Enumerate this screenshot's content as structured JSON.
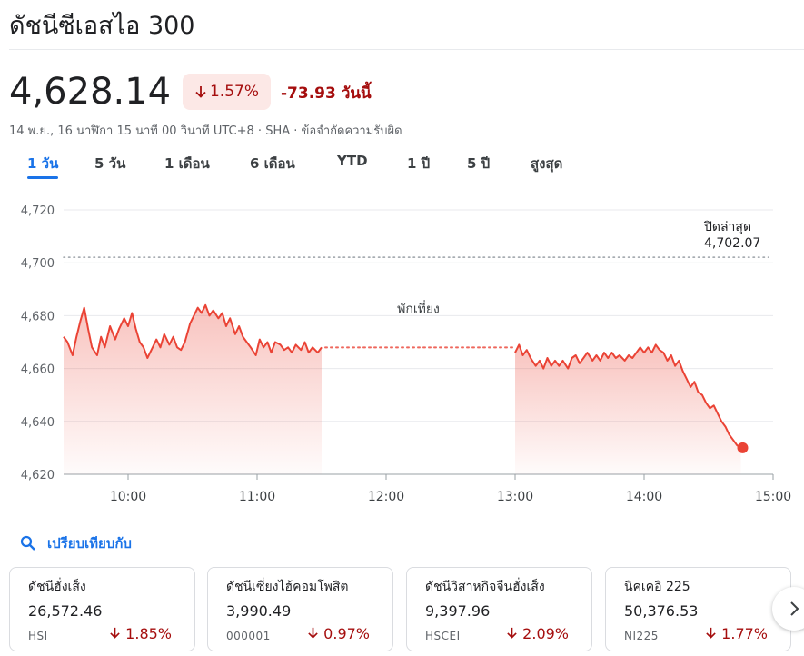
{
  "page": {
    "title": "ดัชนีซีเอสไอ 300",
    "price": "4,628.14",
    "change_pct": "1.57%",
    "change_abs": "-73.93",
    "change_period": "วันนี้",
    "meta": "14 พ.ย., 16 นาฬิกา 15 นาที 00 วินาที UTC+8 · SHA · ข้อจำกัดความรับผิด",
    "colors": {
      "down": "#a50e0e",
      "line": "#ea4335",
      "accent": "#1a73e8"
    }
  },
  "tabs": [
    {
      "label": "1 วัน",
      "active": true
    },
    {
      "label": "5 วัน",
      "active": false
    },
    {
      "label": "1 เดือน",
      "active": false
    },
    {
      "label": "6 เดือน",
      "active": false
    },
    {
      "label": "YTD",
      "active": false
    },
    {
      "label": "1 ปี",
      "active": false
    },
    {
      "label": "5 ปี",
      "active": false
    },
    {
      "label": "สูงสุด",
      "active": false
    }
  ],
  "chart_data": {
    "type": "line",
    "yticks": [
      "4,720",
      "4,700",
      "4,680",
      "4,660",
      "4,640",
      "4,620"
    ],
    "ytick_values": [
      4720,
      4700,
      4680,
      4660,
      4640,
      4620
    ],
    "ylim": [
      4620,
      4720
    ],
    "xticks": [
      "10:00",
      "11:00",
      "12:00",
      "13:00",
      "14:00",
      "15:00"
    ],
    "xtick_values": [
      10,
      11,
      12,
      13,
      14,
      15
    ],
    "xlim": [
      9.5,
      15.0
    ],
    "previous_close_label": "ปิดล่าสุด",
    "previous_close_value": "4,702.07",
    "previous_close": 4702.07,
    "break_label": "พักเที่ยง",
    "grid": true,
    "series": [
      {
        "segment": "morning",
        "points": [
          [
            9.5,
            4672
          ],
          [
            9.53,
            4670
          ],
          [
            9.57,
            4665
          ],
          [
            9.6,
            4672
          ],
          [
            9.63,
            4678
          ],
          [
            9.66,
            4683
          ],
          [
            9.69,
            4675
          ],
          [
            9.72,
            4668
          ],
          [
            9.76,
            4665
          ],
          [
            9.79,
            4672
          ],
          [
            9.82,
            4668
          ],
          [
            9.86,
            4676
          ],
          [
            9.9,
            4671
          ],
          [
            9.93,
            4675
          ],
          [
            9.97,
            4679
          ],
          [
            10.0,
            4676
          ],
          [
            10.03,
            4681
          ],
          [
            10.06,
            4675
          ],
          [
            10.09,
            4670
          ],
          [
            10.12,
            4668
          ],
          [
            10.15,
            4664
          ],
          [
            10.19,
            4668
          ],
          [
            10.22,
            4671
          ],
          [
            10.25,
            4668
          ],
          [
            10.28,
            4673
          ],
          [
            10.32,
            4669
          ],
          [
            10.35,
            4672
          ],
          [
            10.38,
            4668
          ],
          [
            10.41,
            4667
          ],
          [
            10.44,
            4670
          ],
          [
            10.48,
            4677
          ],
          [
            10.51,
            4680
          ],
          [
            10.54,
            4683
          ],
          [
            10.57,
            4681
          ],
          [
            10.6,
            4684
          ],
          [
            10.63,
            4680
          ],
          [
            10.66,
            4682
          ],
          [
            10.7,
            4679
          ],
          [
            10.73,
            4681
          ],
          [
            10.76,
            4676
          ],
          [
            10.79,
            4679
          ],
          [
            10.83,
            4673
          ],
          [
            10.86,
            4676
          ],
          [
            10.89,
            4672
          ],
          [
            10.92,
            4670
          ],
          [
            10.95,
            4668
          ],
          [
            10.99,
            4665
          ],
          [
            11.02,
            4671
          ],
          [
            11.05,
            4668
          ],
          [
            11.08,
            4670
          ],
          [
            11.11,
            4666
          ],
          [
            11.14,
            4670
          ],
          [
            11.18,
            4669
          ],
          [
            11.21,
            4667
          ],
          [
            11.24,
            4668
          ],
          [
            11.27,
            4666
          ],
          [
            11.3,
            4669
          ],
          [
            11.34,
            4667
          ],
          [
            11.37,
            4670
          ],
          [
            11.4,
            4666
          ],
          [
            11.43,
            4668
          ],
          [
            11.47,
            4666
          ],
          [
            11.5,
            4668
          ]
        ]
      },
      {
        "segment": "afternoon",
        "points": [
          [
            13.0,
            4666
          ],
          [
            13.03,
            4669
          ],
          [
            13.06,
            4665
          ],
          [
            13.09,
            4667
          ],
          [
            13.12,
            4664
          ],
          [
            13.16,
            4661
          ],
          [
            13.19,
            4663
          ],
          [
            13.22,
            4660
          ],
          [
            13.25,
            4664
          ],
          [
            13.28,
            4661
          ],
          [
            13.31,
            4663
          ],
          [
            13.34,
            4661
          ],
          [
            13.37,
            4663
          ],
          [
            13.41,
            4660
          ],
          [
            13.44,
            4664
          ],
          [
            13.47,
            4665
          ],
          [
            13.5,
            4662
          ],
          [
            13.53,
            4664
          ],
          [
            13.56,
            4666
          ],
          [
            13.6,
            4663
          ],
          [
            13.63,
            4665
          ],
          [
            13.66,
            4663
          ],
          [
            13.69,
            4666
          ],
          [
            13.72,
            4664
          ],
          [
            13.75,
            4666
          ],
          [
            13.78,
            4664
          ],
          [
            13.81,
            4665
          ],
          [
            13.85,
            4663
          ],
          [
            13.88,
            4665
          ],
          [
            13.91,
            4664
          ],
          [
            13.94,
            4666
          ],
          [
            13.97,
            4668
          ],
          [
            14.0,
            4666
          ],
          [
            14.03,
            4668
          ],
          [
            14.06,
            4666
          ],
          [
            14.09,
            4669
          ],
          [
            14.12,
            4667
          ],
          [
            14.15,
            4666
          ],
          [
            14.18,
            4663
          ],
          [
            14.21,
            4665
          ],
          [
            14.24,
            4661
          ],
          [
            14.27,
            4663
          ],
          [
            14.3,
            4659
          ],
          [
            14.33,
            4656
          ],
          [
            14.36,
            4653
          ],
          [
            14.39,
            4655
          ],
          [
            14.42,
            4651
          ],
          [
            14.45,
            4650
          ],
          [
            14.48,
            4647
          ],
          [
            14.51,
            4645
          ],
          [
            14.54,
            4646
          ],
          [
            14.57,
            4643
          ],
          [
            14.6,
            4640
          ],
          [
            14.63,
            4638
          ],
          [
            14.66,
            4635
          ],
          [
            14.69,
            4633
          ],
          [
            14.72,
            4631
          ],
          [
            14.75,
            4630
          ]
        ]
      }
    ],
    "last_value": 4628.14
  },
  "compare": {
    "label": "เปรียบเทียบกับ"
  },
  "cards": [
    {
      "name": "ดัชนีฮั่งเส็ง",
      "price": "26,572.46",
      "ticker": "HSI",
      "pct": "1.85%"
    },
    {
      "name": "ดัชนีเซี่ยงไฮ้คอมโพสิต",
      "price": "3,990.49",
      "ticker": "000001",
      "pct": "0.97%"
    },
    {
      "name": "ดัชนีวิสาหกิจจีนฮั่งเส็ง",
      "price": "9,397.96",
      "ticker": "HSCEI",
      "pct": "2.09%"
    },
    {
      "name": "นิคเคอิ 225",
      "price": "50,376.53",
      "ticker": "NI225",
      "pct": "1.77%"
    }
  ]
}
